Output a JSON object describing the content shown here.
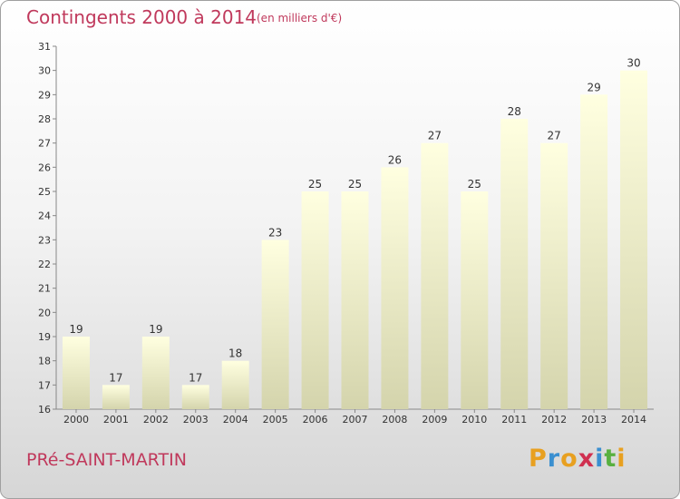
{
  "header": {
    "title": "Contingents 2000 à 2014",
    "subtitle": "(en milliers d'€)"
  },
  "footer": {
    "commune": "PRé-SAINT-MARTIN",
    "logo_letters": [
      "P",
      "r",
      "o",
      "x",
      "i",
      "t",
      "i"
    ],
    "logo_colors": [
      "#e8a020",
      "#3a8fd0",
      "#e8a020",
      "#d03050",
      "#3a8fd0",
      "#58b040",
      "#e8a020"
    ]
  },
  "chart_data": {
    "type": "bar",
    "title": "Contingents 2000 à 2014",
    "subtitle": "(en milliers d'€)",
    "categories": [
      "2000",
      "2001",
      "2002",
      "2003",
      "2004",
      "2005",
      "2006",
      "2007",
      "2008",
      "2009",
      "2010",
      "2011",
      "2012",
      "2013",
      "2014"
    ],
    "values": [
      19,
      17,
      19,
      17,
      18,
      23,
      25,
      25,
      26,
      27,
      25,
      28,
      27,
      29,
      30
    ],
    "ylim": [
      16,
      31
    ],
    "yticks": [
      16,
      17,
      18,
      19,
      20,
      21,
      22,
      23,
      24,
      25,
      26,
      27,
      28,
      29,
      30,
      31
    ],
    "grid": false,
    "bar_color_top": "#ffffe0",
    "bar_color_bottom": "#d4d4ac"
  }
}
